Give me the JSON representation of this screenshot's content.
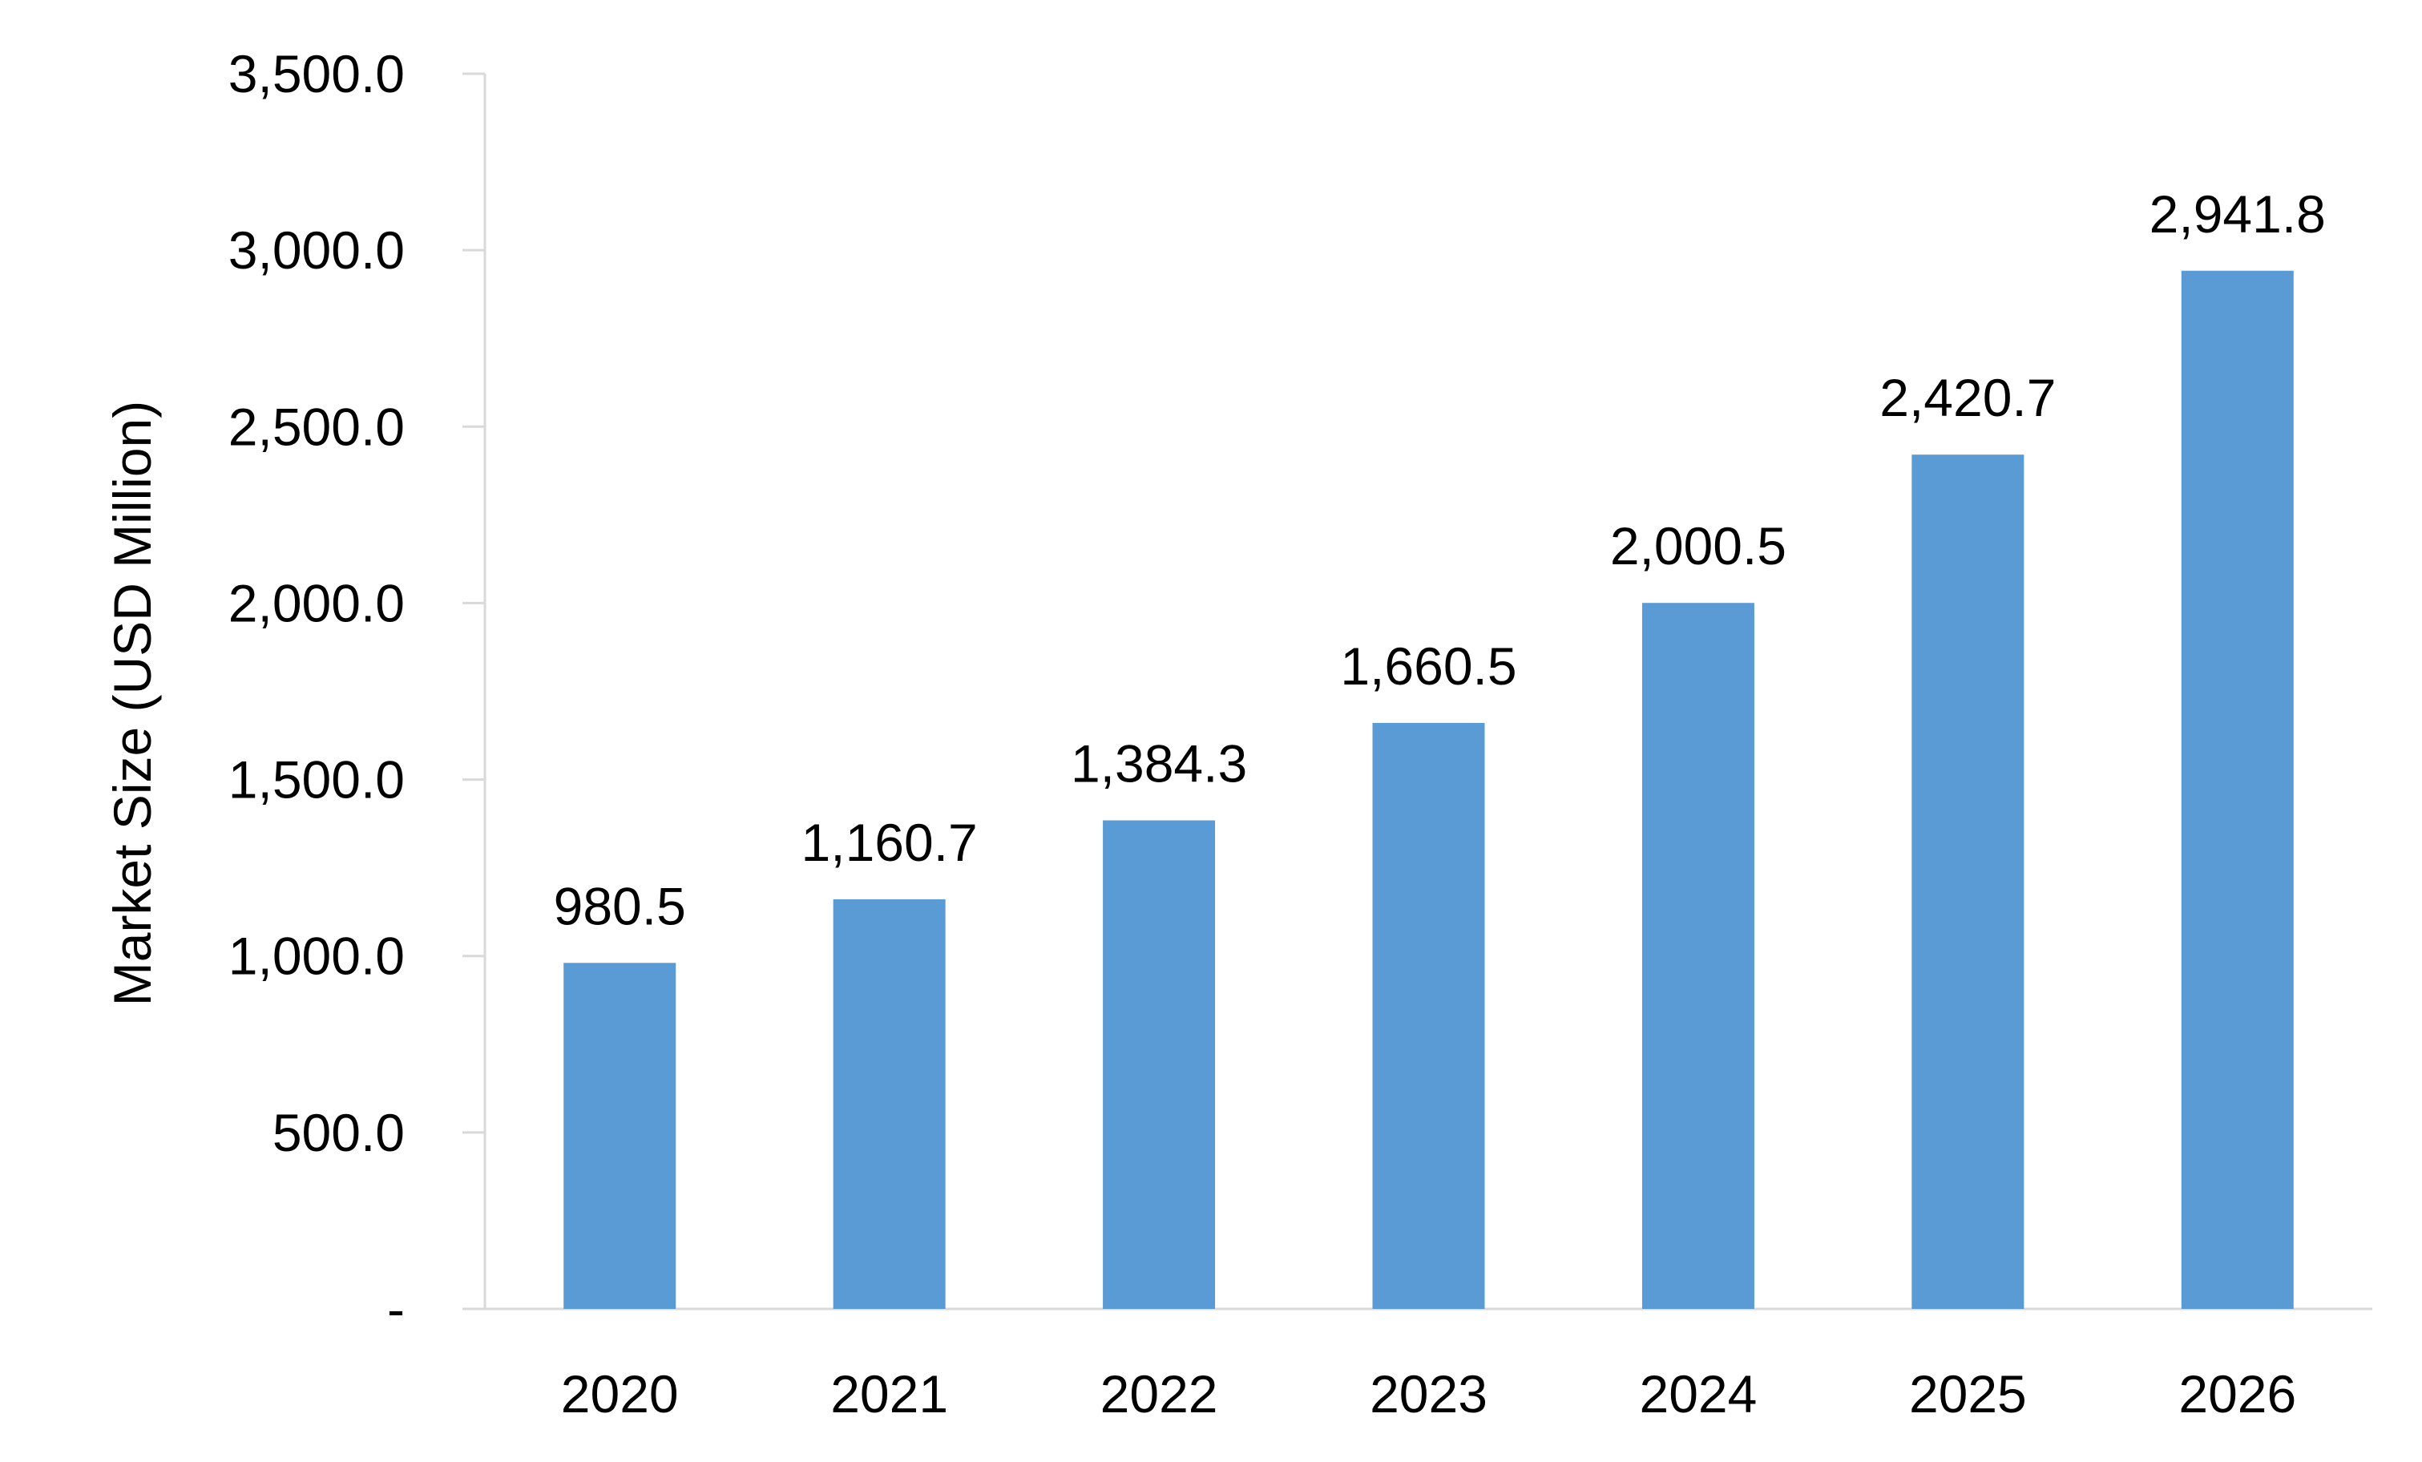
{
  "chart_data": {
    "type": "bar",
    "title": "",
    "xlabel": "",
    "ylabel": "Market Size (USD Million)",
    "categories": [
      "2020",
      "2021",
      "2022",
      "2023",
      "2024",
      "2025",
      "2026"
    ],
    "values": [
      980.5,
      1160.7,
      1384.3,
      1660.5,
      2000.5,
      2420.7,
      2941.8
    ],
    "value_labels": [
      "980.5",
      "1,160.7",
      "1,384.3",
      "1,660.5",
      "2,000.5",
      "2,420.7",
      "2,941.8"
    ],
    "ylim": [
      0,
      3500
    ],
    "yticks": [
      0,
      500,
      1000,
      1500,
      2000,
      2500,
      3000,
      3500
    ],
    "ytick_labels": [
      "-",
      "500.0",
      "1,000.0",
      "1,500.0",
      "2,000.0",
      "2,500.0",
      "3,000.0",
      "3,500.0"
    ],
    "bar_color": "#5b9bd5",
    "axis_color": "#d9d9d9",
    "grid": false,
    "legend": "none"
  }
}
